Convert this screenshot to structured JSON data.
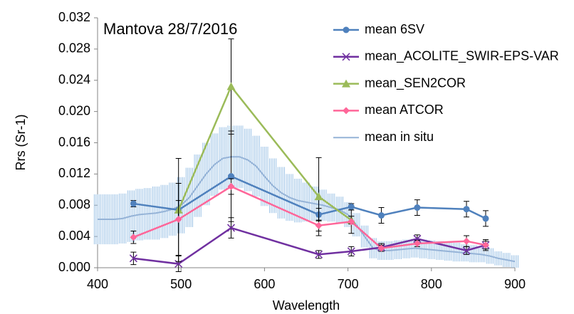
{
  "chart_data": {
    "type": "line",
    "title": "Mantova 28/7/2016",
    "x_label": "Wavelength",
    "y_label": "Rrs (Sr-1)",
    "xlim": [
      400,
      900
    ],
    "xticks": [
      400,
      500,
      600,
      700,
      800,
      900
    ],
    "ylim": [
      0,
      0.032
    ],
    "yticks": [
      {
        "value": 0,
        "label": "0.000"
      },
      {
        "value": 0.004,
        "label": "0.004"
      },
      {
        "value": 0.008,
        "label": "0.008"
      },
      {
        "value": 0.012,
        "label": "0.012"
      },
      {
        "value": 0.016,
        "label": "0.016"
      },
      {
        "value": 0.02,
        "label": "0.020"
      },
      {
        "value": 0.024,
        "label": "0.024"
      },
      {
        "value": 0.028,
        "label": "0.028"
      },
      {
        "value": 0.032,
        "label": "0.032"
      }
    ],
    "legend": "right",
    "series": [
      {
        "name": "mean 6SV",
        "color": "#4f81bd",
        "marker": "circle",
        "x": [
          443,
          497,
          560,
          665,
          704,
          740,
          783,
          842,
          865
        ],
        "values": [
          0.0082,
          0.0074,
          0.0117,
          0.0068,
          0.0078,
          0.0067,
          0.0077,
          0.0075,
          0.0063
        ],
        "errors": [
          0.0004,
          0.0012,
          0.0058,
          0.0008,
          0.0004,
          0.001,
          0.001,
          0.001,
          0.001
        ]
      },
      {
        "name": "mean_ACOLITE_SWIR-EPS-VAR",
        "color": "#7030a0",
        "marker": "x",
        "x": [
          443,
          497,
          560,
          665,
          704,
          740,
          783,
          842,
          865
        ],
        "values": [
          0.0012,
          0.0005,
          0.0051,
          0.0017,
          0.0021,
          0.0026,
          0.0037,
          0.0022,
          0.0029
        ],
        "errors": [
          0.0008,
          0.001,
          0.0013,
          0.0005,
          0.0006,
          0.0005,
          0.0005,
          0.0005,
          0.0005
        ]
      },
      {
        "name": "mean_SEN2COR",
        "color": "#9bbb59",
        "marker": "triangle",
        "x": [
          497,
          560,
          665,
          704
        ],
        "values": [
          0.0074,
          0.0232,
          0.0091,
          0.0061
        ],
        "errors": [
          0.0066,
          0.0061,
          0.005,
          0.0005
        ]
      },
      {
        "name": "mean ATCOR",
        "color": "#ff6699",
        "marker": "diamond",
        "x": [
          443,
          497,
          560,
          665,
          704,
          740,
          783,
          842,
          865
        ],
        "values": [
          0.0039,
          0.0062,
          0.0104,
          0.0054,
          0.0059,
          0.0025,
          0.0031,
          0.0034,
          0.0029
        ],
        "errors": [
          0.0008,
          0.0046,
          0.001,
          0.0007,
          0.0015,
          0.0004,
          0.0004,
          0.0007,
          0.0007
        ]
      },
      {
        "name": "mean in situ",
        "color": "#95b3d7",
        "marker": "none",
        "x": [
          400,
          410,
          420,
          430,
          440,
          450,
          460,
          470,
          480,
          490,
          500,
          510,
          520,
          530,
          540,
          550,
          560,
          570,
          580,
          590,
          600,
          610,
          620,
          630,
          640,
          650,
          660,
          670,
          680,
          690,
          700,
          710,
          720,
          730,
          740,
          750,
          760,
          770,
          780,
          790,
          800,
          810,
          820,
          830,
          840,
          850,
          860,
          870,
          880,
          890,
          900
        ],
        "values": [
          0.0062,
          0.0062,
          0.0062,
          0.0063,
          0.0066,
          0.0068,
          0.0069,
          0.007,
          0.0072,
          0.0075,
          0.008,
          0.009,
          0.0105,
          0.012,
          0.0132,
          0.014,
          0.0142,
          0.0142,
          0.0138,
          0.013,
          0.0117,
          0.0105,
          0.0096,
          0.009,
          0.0086,
          0.0084,
          0.0082,
          0.008,
          0.0077,
          0.0074,
          0.0068,
          0.0055,
          0.004,
          0.0025,
          0.0022,
          0.0022,
          0.0023,
          0.0024,
          0.0025,
          0.0024,
          0.0023,
          0.0022,
          0.0021,
          0.002,
          0.0019,
          0.0018,
          0.0017,
          0.0015,
          0.0012,
          0.001,
          0.0008
        ],
        "errors": [
          0.0032,
          0.0032,
          0.0032,
          0.0032,
          0.0033,
          0.0033,
          0.0033,
          0.0034,
          0.0034,
          0.0034,
          0.0036,
          0.0038,
          0.004,
          0.004,
          0.004,
          0.004,
          0.004,
          0.004,
          0.004,
          0.0039,
          0.0038,
          0.0035,
          0.0033,
          0.003,
          0.0028,
          0.0025,
          0.0022,
          0.002,
          0.0018,
          0.0017,
          0.0016,
          0.0015,
          0.0014,
          0.0013,
          0.0012,
          0.0012,
          0.0012,
          0.0012,
          0.0012,
          0.0012,
          0.0012,
          0.0012,
          0.0012,
          0.0012,
          0.0011,
          0.0011,
          0.001,
          0.001,
          0.0009,
          0.0009,
          0.0008
        ]
      }
    ]
  }
}
